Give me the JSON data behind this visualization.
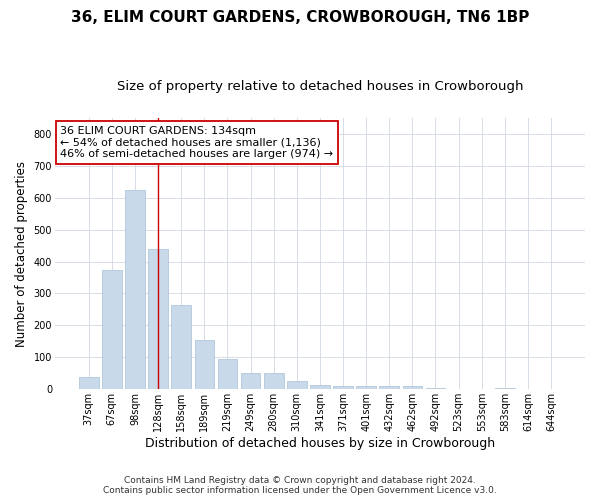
{
  "title": "36, ELIM COURT GARDENS, CROWBOROUGH, TN6 1BP",
  "subtitle": "Size of property relative to detached houses in Crowborough",
  "xlabel": "Distribution of detached houses by size in Crowborough",
  "ylabel": "Number of detached properties",
  "categories": [
    "37sqm",
    "67sqm",
    "98sqm",
    "128sqm",
    "158sqm",
    "189sqm",
    "219sqm",
    "249sqm",
    "280sqm",
    "310sqm",
    "341sqm",
    "371sqm",
    "401sqm",
    "432sqm",
    "462sqm",
    "492sqm",
    "523sqm",
    "553sqm",
    "583sqm",
    "614sqm",
    "644sqm"
  ],
  "values": [
    40,
    375,
    625,
    440,
    265,
    155,
    95,
    50,
    50,
    25,
    15,
    10,
    10,
    10,
    10,
    5,
    0,
    0,
    5,
    0,
    0
  ],
  "bar_color": "#c8d9ea",
  "bar_edge_color": "#a8c0d6",
  "vline_x_index": 3,
  "vline_color": "#cc0000",
  "annotation_line0": "36 ELIM COURT GARDENS: 134sqm",
  "annotation_line1": "← 54% of detached houses are smaller (1,136)",
  "annotation_line2": "46% of semi-detached houses are larger (974) →",
  "annotation_box_color": "#ffffff",
  "annotation_box_edge": "#cc0000",
  "ylim": [
    0,
    850
  ],
  "yticks": [
    0,
    100,
    200,
    300,
    400,
    500,
    600,
    700,
    800
  ],
  "footer_line1": "Contains HM Land Registry data © Crown copyright and database right 2024.",
  "footer_line2": "Contains public sector information licensed under the Open Government Licence v3.0.",
  "bg_color": "#ffffff",
  "plot_bg_color": "#ffffff",
  "title_fontsize": 11,
  "subtitle_fontsize": 9.5,
  "tick_fontsize": 7,
  "ylabel_fontsize": 8.5,
  "xlabel_fontsize": 9,
  "footer_fontsize": 6.5,
  "annotation_fontsize": 8
}
